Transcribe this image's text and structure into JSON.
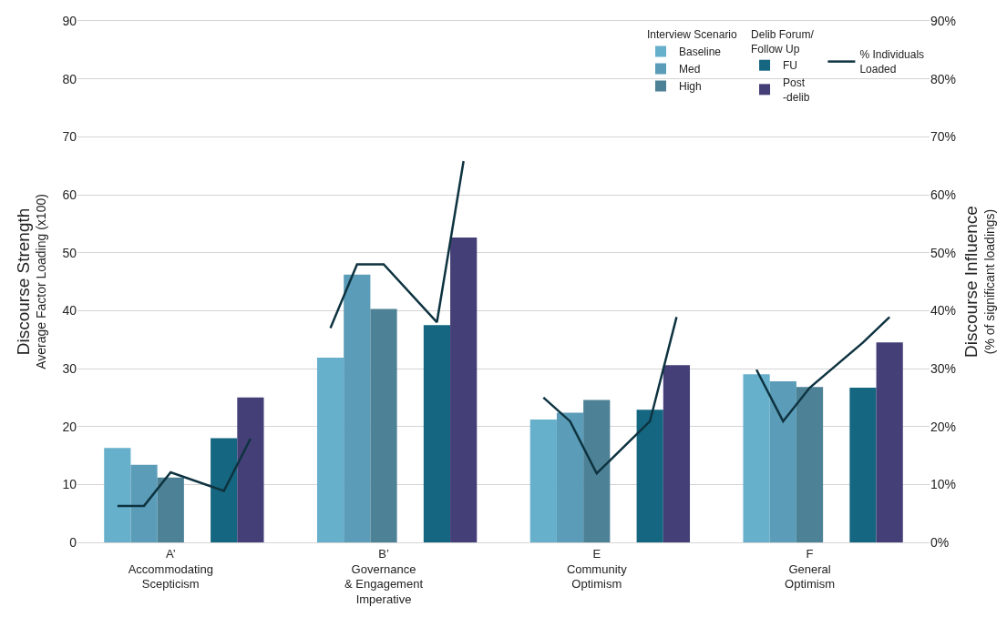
{
  "chart_data": {
    "type": "bar",
    "categories": [
      null,
      null,
      null,
      "A’\nAccommodating\nScepticism",
      null,
      null,
      null,
      null,
      null,
      null,
      null,
      "B’\nGovernance\n& Engagement\nImperative",
      null,
      null,
      null,
      null,
      null,
      null,
      null,
      "E\nCommunity\nOptimism",
      null,
      null,
      null,
      null,
      null,
      null,
      null,
      "F\nGeneral\nOptimism",
      null,
      null,
      null,
      null
    ],
    "series": [
      {
        "name": "Baseline",
        "color": "#67b0cc",
        "values": [
          null,
          16.3,
          null,
          null,
          null,
          null,
          null,
          null,
          null,
          31.9,
          null,
          null,
          null,
          null,
          null,
          null,
          null,
          21.2,
          null,
          null,
          null,
          null,
          null,
          null,
          null,
          29.0,
          null,
          null,
          null,
          null,
          null,
          null
        ]
      },
      {
        "name": "Med",
        "color": "#5b9db8",
        "values": [
          null,
          null,
          13.4,
          null,
          null,
          null,
          null,
          null,
          null,
          null,
          46.2,
          null,
          null,
          null,
          null,
          null,
          null,
          null,
          22.4,
          null,
          null,
          null,
          null,
          null,
          null,
          null,
          27.8,
          null,
          null,
          null,
          null,
          null
        ]
      },
      {
        "name": "High",
        "color": "#4d8296",
        "values": [
          null,
          null,
          null,
          11.2,
          null,
          null,
          null,
          null,
          null,
          null,
          null,
          40.3,
          null,
          null,
          null,
          null,
          null,
          null,
          null,
          24.6,
          null,
          null,
          null,
          null,
          null,
          null,
          null,
          26.8,
          null,
          null,
          null,
          null
        ]
      },
      {
        "name": "FU",
        "color": "#156680",
        "values": [
          null,
          null,
          null,
          null,
          null,
          18.0,
          null,
          null,
          null,
          null,
          null,
          null,
          null,
          37.5,
          null,
          null,
          null,
          null,
          null,
          null,
          null,
          22.9,
          null,
          null,
          null,
          null,
          null,
          null,
          null,
          26.7,
          null,
          null
        ]
      },
      {
        "name": "Post\n-delib",
        "color": "#453f78",
        "values": [
          null,
          null,
          null,
          null,
          null,
          null,
          25.0,
          null,
          null,
          null,
          null,
          null,
          null,
          null,
          52.6,
          null,
          null,
          null,
          null,
          null,
          null,
          null,
          30.6,
          null,
          null,
          null,
          null,
          null,
          null,
          null,
          34.5,
          null
        ]
      },
      {
        "name": "% Individuals\nLoaded",
        "type": "line",
        "axis": "y2",
        "color": "#0e3340",
        "values": [
          null,
          6.3,
          6.3,
          12.1,
          null,
          8.9,
          17.9,
          null,
          null,
          37,
          48,
          48,
          null,
          38,
          65.8,
          null,
          null,
          25,
          20.9,
          11.9,
          null,
          20.9,
          38.9,
          null,
          null,
          29.8,
          20.9,
          26.7,
          null,
          34.5,
          38.9,
          null
        ]
      }
    ],
    "ylabel": "Discourse Strength\nAverage Factor Loading (x100)",
    "y2label": "Discourse Influence\n(% of significant loadings)",
    "ylim": [
      0,
      90
    ],
    "yticks": [
      0,
      10,
      20,
      30,
      40,
      50,
      60,
      70,
      80,
      90
    ],
    "y2lim": [
      0,
      90
    ],
    "y2ticks": [
      {
        "value": 0,
        "label": "0%"
      },
      {
        "value": 10,
        "label": "10%"
      },
      {
        "value": 20,
        "label": "20%"
      },
      {
        "value": 30,
        "label": "30%"
      },
      {
        "value": 40,
        "label": "40%"
      },
      {
        "value": 50,
        "label": "50%"
      },
      {
        "value": 60,
        "label": "60%"
      },
      {
        "value": 70,
        "label": "70%"
      },
      {
        "value": 80,
        "label": "80%"
      },
      {
        "value": 90,
        "label": "90%"
      }
    ],
    "annotations": [
      "Interview Scenario",
      "Delib Forum/\nFollow Up"
    ],
    "grid": "y",
    "legend": "top right"
  }
}
